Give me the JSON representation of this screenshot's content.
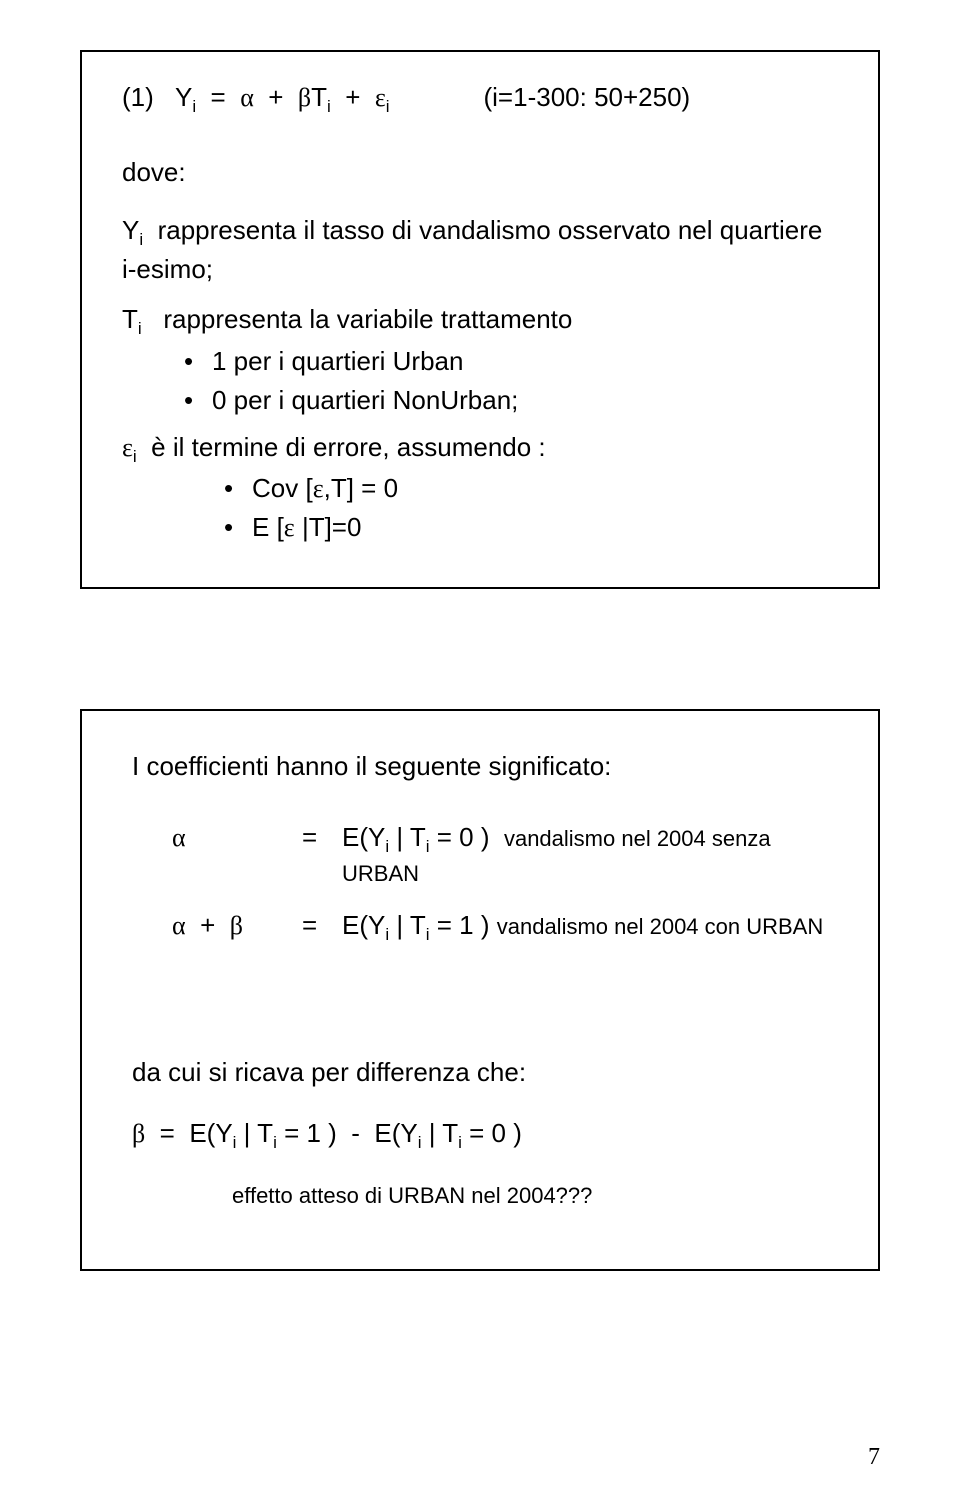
{
  "panel1": {
    "equation": {
      "label": "(1)",
      "body_html": "Y<span class='sub'>i</span>&nbsp;&nbsp;=&nbsp;&nbsp;<span class='greek'>α</span>&nbsp;&nbsp;+&nbsp;&nbsp;<span class='greek'>β</span>T<span class='sub'>i</span>&nbsp;&nbsp;+&nbsp;&nbsp;<span class='greek'>ε</span><span class='sub'>i</span>",
      "note": "(i=1-300: 50+250)"
    },
    "dove": "dove:",
    "y_def_html": "Y<span class='sub'>i</span>&nbsp; rappresenta il tasso di vandalismo osservato nel quartiere i-esimo;",
    "t_def_html": "T<span class='sub'>i</span>&nbsp;&nbsp; rappresenta la variabile trattamento",
    "t_bullets": [
      "1 per i quartieri Urban",
      "0 per i quartieri NonUrban;"
    ],
    "eps_def_html": "<span class='greek'>ε</span><span class='sub'>i</span>&nbsp; è il termine di errore, assumendo :",
    "eps_bullets_html": [
      "Cov [<span class='greek'>ε</span>,T] = 0",
      "E [<span class='greek'>ε</span> |T]=0"
    ]
  },
  "panel2": {
    "intro": "I  coefficienti hanno il seguente significato:",
    "rows": [
      {
        "lhs_html": "<span class='greek'>α</span>",
        "rhs_html": "E(Y<span class='sub'>i</span> | T<span class='sub'>i</span> = 0 )&nbsp; <span class='annot'>vandalismo nel 2004 senza URBAN</span>"
      },
      {
        "lhs_html": "<span class='greek'>α</span>&nbsp;&nbsp;+&nbsp;&nbsp;<span class='greek'>β</span>",
        "rhs_html": "E(Y<span class='sub'>i</span> | T<span class='sub'>i</span> = 1 )&nbsp;<span class='annot'>vandalismo nel 2004 con URBAN</span>"
      }
    ],
    "deriv": "da cui si ricava per differenza che:",
    "deriv_eq_html": "<span class='greek'>β</span>&nbsp;&nbsp;=&nbsp;&nbsp;E(Y<span class='sub'>i</span> | T<span class='sub'>i</span> = 1 )&nbsp;&nbsp;-&nbsp;&nbsp;E(Y<span class='sub'>i</span> | T<span class='sub'>i</span> = 0 )",
    "effect": "effetto atteso di URBAN nel 2004???"
  },
  "page_number": "7"
}
